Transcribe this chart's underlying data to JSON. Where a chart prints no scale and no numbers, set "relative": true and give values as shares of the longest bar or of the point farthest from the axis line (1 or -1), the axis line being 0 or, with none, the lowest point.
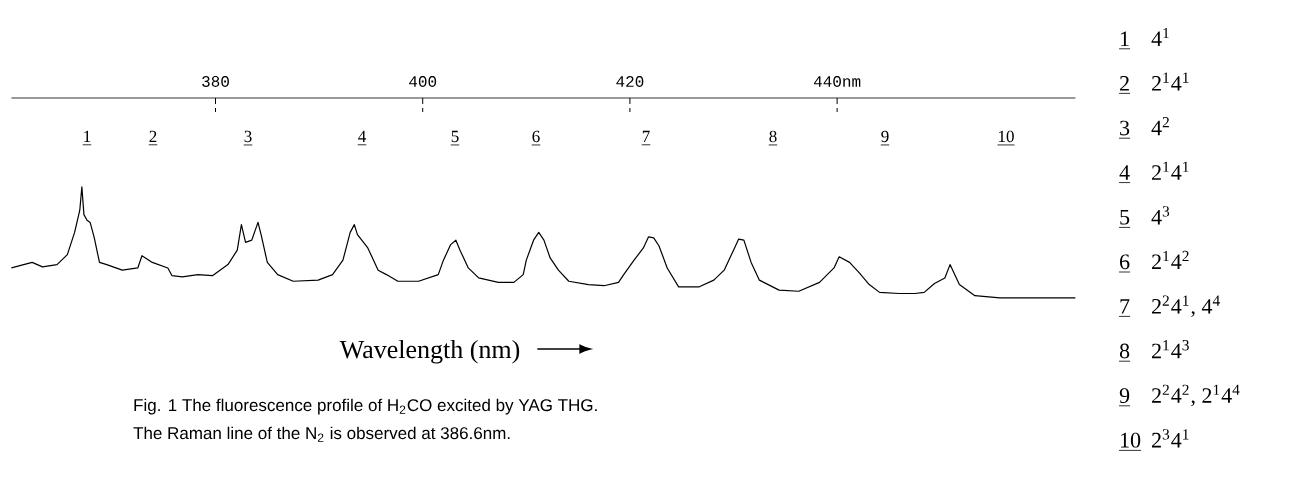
{
  "chart_data": {
    "type": "line",
    "relative": true,
    "xlabel": "Wavelength (nm)",
    "xlim": [
      360.3,
      463
    ],
    "xticks": [
      380,
      400,
      420,
      {
        "value": 440,
        "label": "440nm"
      }
    ],
    "series": [
      {
        "color": "#000000",
        "x": [
          360.3,
          362.3,
          363.3,
          364.7,
          365.7,
          366.4,
          366.9,
          367.1,
          367.3,
          367.6,
          367.9,
          368.3,
          368.8,
          369.5,
          371.0,
          372.5,
          372.9,
          373.9,
          375.4,
          375.8,
          376.8,
          378.3,
          379.7,
          381.2,
          382.1,
          382.5,
          382.9,
          383.5,
          384.1,
          384.4,
          385.0,
          386.0,
          387.5,
          389.9,
          391.3,
          392.3,
          393.0,
          393.4,
          393.7,
          394.7,
          395.7,
          396.5,
          397.6,
          399.6,
          401.5,
          402.0,
          402.7,
          403.2,
          403.6,
          404.4,
          405.4,
          407.3,
          408.8,
          409.7,
          410.0,
          410.7,
          411.2,
          411.7,
          412.3,
          413.1,
          414.1,
          416.0,
          417.5,
          418.9,
          419.4,
          420.4,
          421.3,
          421.8,
          422.3,
          422.8,
          423.6,
          424.7,
          426.7,
          428.1,
          429.1,
          430.0,
          430.5,
          431.0,
          431.7,
          432.5,
          434.4,
          436.3,
          438.3,
          439.7,
          440.2,
          441.2,
          442.1,
          443.1,
          444.1,
          446.0,
          447.5,
          448.4,
          449.4,
          450.4,
          450.9,
          451.8,
          453.3,
          455.7,
          457.2,
          463.0
        ],
        "values": [
          0.27,
          0.32,
          0.28,
          0.3,
          0.39,
          0.59,
          0.79,
          1,
          0.75,
          0.7,
          0.68,
          0.54,
          0.32,
          0.3,
          0.25,
          0.27,
          0.38,
          0.32,
          0.27,
          0.2,
          0.19,
          0.21,
          0.2,
          0.3,
          0.43,
          0.66,
          0.5,
          0.52,
          0.68,
          0.57,
          0.32,
          0.21,
          0.15,
          0.16,
          0.21,
          0.34,
          0.59,
          0.66,
          0.57,
          0.45,
          0.25,
          0.21,
          0.15,
          0.15,
          0.21,
          0.34,
          0.48,
          0.52,
          0.43,
          0.27,
          0.18,
          0.14,
          0.14,
          0.21,
          0.34,
          0.52,
          0.59,
          0.52,
          0.36,
          0.25,
          0.15,
          0.12,
          0.11,
          0.14,
          0.21,
          0.34,
          0.45,
          0.55,
          0.54,
          0.47,
          0.27,
          0.1,
          0.1,
          0.16,
          0.25,
          0.43,
          0.53,
          0.52,
          0.32,
          0.16,
          0.07,
          0.06,
          0.14,
          0.27,
          0.37,
          0.32,
          0.23,
          0.12,
          0.05,
          0.04,
          0.04,
          0.05,
          0.13,
          0.18,
          0.3,
          0.12,
          0.02,
          0,
          0,
          0
        ]
      }
    ],
    "annotations": [
      "1",
      "2",
      "3",
      "4",
      "5",
      "6",
      "7",
      "8",
      "9",
      "10",
      "4$^{1}$",
      "2$^{1}$4$^{1}$",
      "4$^{2}$",
      "2$^{1}$4$^{1}$",
      "4$^{3}$",
      "2$^{1}$4$^{2}$",
      "2$^{2}$4$^{1}$, 4$^{4}$",
      "2$^{1}$4$^{3}$",
      "2$^{2}$4$^{2}$, 2$^{1}$4$^{4}$",
      "2$^{3}$4$^{1}$",
      "Fig. 1  The fluorescence  profile of H$_{2}$CO excited by YAG THG.",
      "The Raman  line of the N$_{2}$ is observed  at 386.6nm."
    ]
  }
}
